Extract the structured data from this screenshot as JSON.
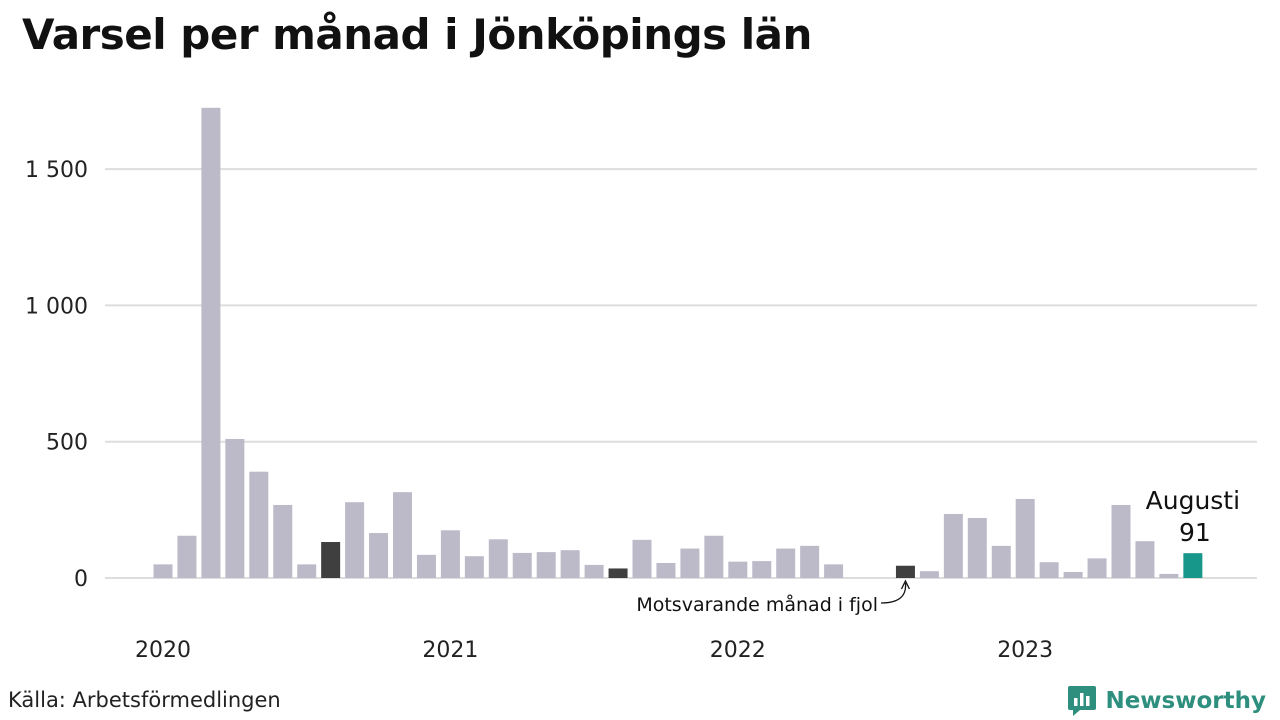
{
  "title": "Varsel per månad i Jönköpings län",
  "source": "Källa: Arbetsförmedlingen",
  "brand": {
    "name": "Newsworthy",
    "icon": "newsworthy-logo-icon"
  },
  "colors": {
    "bar": "#bcbac8",
    "comparison": "#3f3f3f",
    "highlight": "#17968a",
    "grid": "#dddddd",
    "brand": "#2e8f7e"
  },
  "chart_data": {
    "type": "bar",
    "ylim": [
      0,
      1750
    ],
    "yticks": [
      {
        "value": 0,
        "label": "0"
      },
      {
        "value": 500,
        "label": "500"
      },
      {
        "value": 1000,
        "label": "1 000"
      },
      {
        "value": 1500,
        "label": "1 500"
      }
    ],
    "x_ticks": [
      {
        "index": 0,
        "label": "2020"
      },
      {
        "index": 12,
        "label": "2021"
      },
      {
        "index": 24,
        "label": "2022"
      },
      {
        "index": 36,
        "label": "2023"
      }
    ],
    "grid": true,
    "categories": [
      "2020-01",
      "2020-02",
      "2020-03",
      "2020-04",
      "2020-05",
      "2020-06",
      "2020-07",
      "2020-08",
      "2020-09",
      "2020-10",
      "2020-11",
      "2020-12",
      "2021-01",
      "2021-02",
      "2021-03",
      "2021-04",
      "2021-05",
      "2021-06",
      "2021-07",
      "2021-08",
      "2021-09",
      "2021-10",
      "2021-11",
      "2021-12",
      "2022-01",
      "2022-02",
      "2022-03",
      "2022-04",
      "2022-05",
      "2022-06",
      "2022-07",
      "2022-08",
      "2022-09",
      "2022-10",
      "2022-11",
      "2022-12",
      "2023-01",
      "2023-02",
      "2023-03",
      "2023-04",
      "2023-05",
      "2023-06",
      "2023-07",
      "2023-08"
    ],
    "values": [
      50,
      155,
      1725,
      510,
      390,
      268,
      50,
      132,
      278,
      165,
      315,
      85,
      175,
      80,
      142,
      92,
      95,
      102,
      48,
      35,
      140,
      55,
      108,
      155,
      60,
      62,
      108,
      118,
      50,
      0,
      0,
      45,
      25,
      235,
      220,
      118,
      290,
      58,
      22,
      72,
      268,
      135,
      15,
      91
    ],
    "comparison_indices": [
      7,
      19,
      31
    ],
    "highlight_index": 43,
    "highlight_label": "Augusti",
    "highlight_value_label": "91",
    "annotation": {
      "text": "Motsvarande månad i fjol",
      "index": 31
    }
  }
}
